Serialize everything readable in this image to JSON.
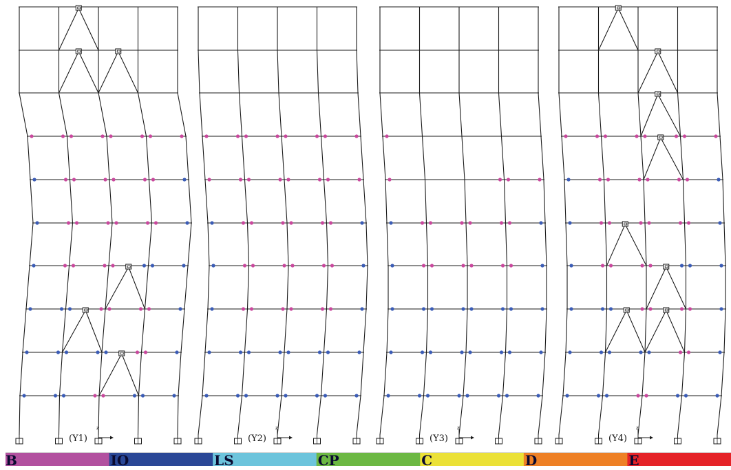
{
  "frames": [
    {
      "id": "Y1",
      "label": "(Y1)",
      "sway": [
        0,
        0,
        0,
        12,
        16,
        20,
        15,
        10,
        5,
        1,
        0
      ],
      "cols": [
        [
          0,
          0,
          0,
          0,
          0
        ],
        [
          0,
          0,
          0,
          0,
          0
        ],
        [
          1,
          1,
          1,
          1,
          1
        ],
        [
          2,
          1,
          1,
          1,
          2
        ],
        [
          2,
          1,
          1,
          1,
          2
        ],
        [
          2,
          1,
          1,
          2,
          2
        ],
        [
          2,
          2,
          1,
          1,
          2
        ],
        [
          2,
          2,
          2,
          1,
          2
        ],
        [
          2,
          2,
          1,
          2,
          2
        ],
        [
          1,
          1,
          1,
          1,
          1
        ]
      ],
      "braces": [
        [
          0,
          1,
          0
        ],
        [
          1,
          1,
          1
        ],
        [
          1,
          2,
          1
        ],
        [
          6,
          2,
          1
        ],
        [
          7,
          1,
          1
        ],
        [
          8,
          2,
          1
        ]
      ]
    },
    {
      "id": "Y2",
      "label": "(Y2)",
      "sway": [
        0,
        0,
        2,
        6,
        10,
        14,
        16,
        14,
        10,
        6,
        0
      ],
      "cols": [
        [
          0,
          0,
          0,
          0,
          0
        ],
        [
          0,
          0,
          0,
          0,
          0
        ],
        [
          1,
          1,
          1,
          1,
          1
        ],
        [
          1,
          1,
          1,
          1,
          1
        ],
        [
          2,
          1,
          1,
          1,
          2
        ],
        [
          2,
          1,
          1,
          1,
          2
        ],
        [
          2,
          1,
          1,
          1,
          2
        ],
        [
          2,
          2,
          2,
          2,
          2
        ],
        [
          2,
          2,
          2,
          2,
          2
        ],
        [
          0,
          1,
          0,
          1,
          0
        ]
      ],
      "braces": []
    },
    {
      "id": "Y3",
      "label": "(Y3)",
      "sway": [
        0,
        0,
        0,
        4,
        8,
        10,
        12,
        12,
        10,
        6,
        0
      ],
      "cols": [
        [
          0,
          0,
          0,
          0,
          0
        ],
        [
          0,
          0,
          0,
          0,
          0
        ],
        [
          1,
          0,
          0,
          0,
          0
        ],
        [
          1,
          0,
          0,
          1,
          1
        ],
        [
          2,
          1,
          1,
          1,
          2
        ],
        [
          2,
          1,
          1,
          1,
          2
        ],
        [
          2,
          2,
          2,
          2,
          2
        ],
        [
          2,
          2,
          2,
          2,
          2
        ],
        [
          2,
          2,
          2,
          2,
          2
        ],
        [
          1,
          0,
          0,
          0,
          1
        ]
      ],
      "braces": []
    },
    {
      "id": "Y4",
      "label": "(Y4)",
      "sway": [
        0,
        0,
        0,
        4,
        8,
        10,
        12,
        12,
        10,
        6,
        0
      ],
      "cols": [
        [
          0,
          0,
          0,
          0,
          0
        ],
        [
          0,
          0,
          0,
          0,
          0
        ],
        [
          1,
          1,
          1,
          1,
          1
        ],
        [
          2,
          1,
          1,
          1,
          2
        ],
        [
          2,
          1,
          1,
          1,
          2
        ],
        [
          2,
          1,
          1,
          2,
          2
        ],
        [
          2,
          2,
          1,
          1,
          2
        ],
        [
          2,
          2,
          2,
          1,
          2
        ],
        [
          2,
          2,
          1,
          2,
          2
        ],
        [
          1,
          1,
          1,
          1,
          1
        ]
      ],
      "braces": [
        [
          0,
          1,
          1
        ],
        [
          1,
          2,
          1
        ],
        [
          2,
          2,
          1
        ],
        [
          3,
          2,
          1
        ],
        [
          5,
          1,
          1
        ],
        [
          6,
          2,
          1
        ],
        [
          7,
          1,
          1
        ],
        [
          7,
          2,
          1
        ]
      ]
    }
  ],
  "axis_glyph": "z",
  "hinge_colors": {
    "magenta": "#c9489d",
    "blue": "#3b5cb6"
  },
  "legend": {
    "segments": [
      {
        "label": "B",
        "color": "#b2509f"
      },
      {
        "label": "IO",
        "color": "#2a4796"
      },
      {
        "label": "LS",
        "color": "#6cc4dc"
      },
      {
        "label": "CP",
        "color": "#6cb843"
      },
      {
        "label": "C",
        "color": "#ebe137"
      },
      {
        "label": "D",
        "color": "#ee8025"
      },
      {
        "label": "E",
        "color": "#e52328"
      }
    ]
  }
}
